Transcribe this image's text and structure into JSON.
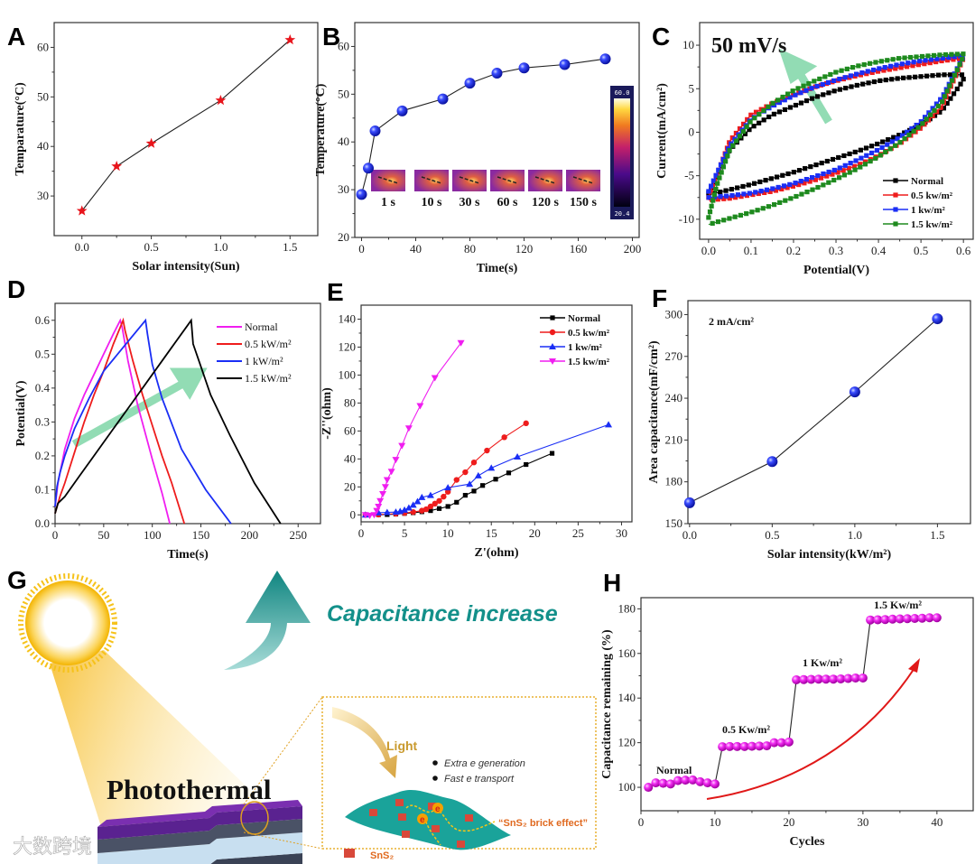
{
  "chart_data": [
    {
      "id": "A",
      "type": "line",
      "letter": "A",
      "title": "",
      "xlabel": "Solar intensity(Sun)",
      "ylabel": "Temparature(°C)",
      "xlim": [
        -0.2,
        1.7
      ],
      "ylim": [
        22,
        65
      ],
      "xticks": [
        0,
        0.5,
        1,
        1.5
      ],
      "xtick_labels": [
        "0.0",
        "0.5",
        "1.0",
        "1.5"
      ],
      "yticks": [
        30,
        40,
        50,
        60
      ],
      "ytick_labels": [
        "30",
        "40",
        "50",
        "60"
      ],
      "series": [
        {
          "name": "Temperature",
          "color": "#e8141b",
          "marker": "star",
          "line": "#222",
          "x": [
            0,
            0.25,
            0.5,
            1.0,
            1.5
          ],
          "y": [
            27,
            36,
            40.6,
            49.3,
            61.5
          ]
        }
      ],
      "annotations": []
    },
    {
      "id": "B",
      "type": "line",
      "letter": "B",
      "xlabel": "Time(s)",
      "ylabel": "Temperature(°C)",
      "xlim": [
        -5,
        205
      ],
      "ylim": [
        20,
        65
      ],
      "xticks": [
        0,
        40,
        80,
        120,
        160,
        200
      ],
      "xtick_labels": [
        "0",
        "40",
        "80",
        "120",
        "160",
        "200"
      ],
      "yticks": [
        20,
        30,
        40,
        50,
        60
      ],
      "ytick_labels": [
        "20",
        "30",
        "40",
        "50",
        "60"
      ],
      "series": [
        {
          "name": "Temperature",
          "color": "#1c2cf0",
          "marker": "sphere",
          "line": "#222",
          "x": [
            0,
            5,
            10,
            30,
            60,
            80,
            100,
            120,
            150,
            180
          ],
          "y": [
            29,
            34.5,
            42.3,
            46.5,
            49,
            52.3,
            54.4,
            55.5,
            56.2,
            57.4
          ]
        }
      ],
      "inset": {
        "frame_labels": [
          "1 s",
          "10 s",
          "30 s",
          "60 s",
          "120 s",
          "150 s"
        ],
        "colorbar_max": "60.0",
        "colorbar_min": "20.4"
      },
      "annotations": []
    },
    {
      "id": "C",
      "type": "line",
      "letter": "C",
      "xlabel": "Potential(V)",
      "ylabel": "Current(mA/cm²)",
      "xlim": [
        -0.021,
        0.623
      ],
      "ylim": [
        -12.3,
        12.6
      ],
      "xticks": [
        0,
        0.1,
        0.2,
        0.3,
        0.4,
        0.5,
        0.6
      ],
      "xtick_labels": [
        "0.0",
        "0.1",
        "0.2",
        "0.3",
        "0.4",
        "0.5",
        "0.6"
      ],
      "yticks": [
        -10,
        -5,
        0,
        5,
        10
      ],
      "ytick_labels": [
        "-10",
        "-5",
        "0",
        "5",
        "10"
      ],
      "series": [
        {
          "name": "Normal",
          "color": "#000000",
          "marker": "square",
          "dense": true,
          "x": [
            0,
            0.05,
            0.1,
            0.15,
            0.2,
            0.25,
            0.3,
            0.35,
            0.4,
            0.45,
            0.5,
            0.55,
            0.6,
            0.6,
            0.55,
            0.5,
            0.45,
            0.4,
            0.35,
            0.3,
            0.25,
            0.2,
            0.15,
            0.1,
            0.05,
            0
          ],
          "y": [
            -7,
            -2,
            0.5,
            2,
            3,
            4,
            4.8,
            5.4,
            5.9,
            6.2,
            6.4,
            6.6,
            6.6,
            6,
            2.5,
            0.8,
            -0.3,
            -1.3,
            -2.2,
            -3,
            -3.8,
            -4.6,
            -5.3,
            -6,
            -6.6,
            -7.2
          ]
        },
        {
          "name": "0.5 kw/m²",
          "color": "#ee1c1c",
          "marker": "square",
          "dense": true,
          "x": [
            0,
            0.05,
            0.1,
            0.15,
            0.2,
            0.25,
            0.3,
            0.35,
            0.4,
            0.45,
            0.5,
            0.55,
            0.6,
            0.6,
            0.55,
            0.5,
            0.45,
            0.4,
            0.35,
            0.3,
            0.25,
            0.2,
            0.15,
            0.1,
            0.05,
            0
          ],
          "y": [
            -7.5,
            -1,
            2,
            3.3,
            4.3,
            5.2,
            5.9,
            6.5,
            7,
            7.4,
            7.8,
            8.2,
            8.5,
            8.5,
            3,
            0.5,
            -1.3,
            -2.7,
            -3.8,
            -4.7,
            -5.5,
            -6.2,
            -6.8,
            -7.2,
            -7.6,
            -7.8
          ]
        },
        {
          "name": "1 kw/m²",
          "color": "#1a2ef5",
          "marker": "square",
          "dense": true,
          "x": [
            0,
            0.05,
            0.1,
            0.15,
            0.2,
            0.25,
            0.3,
            0.35,
            0.4,
            0.45,
            0.5,
            0.55,
            0.6,
            0.6,
            0.55,
            0.5,
            0.45,
            0.4,
            0.35,
            0.3,
            0.25,
            0.2,
            0.15,
            0.1,
            0.05,
            0
          ],
          "y": [
            -6.8,
            -1.5,
            1.5,
            3,
            4.2,
            5.2,
            6,
            6.7,
            7.3,
            7.8,
            8.2,
            8.5,
            8.8,
            8.7,
            4,
            1.2,
            -0.6,
            -2,
            -3.2,
            -4.3,
            -5.1,
            -5.9,
            -6.5,
            -7,
            -7.3,
            -7.5
          ]
        },
        {
          "name": "1.5 kw/m²",
          "color": "#1e8a1e",
          "marker": "square",
          "dense": true,
          "x": [
            0,
            0.02,
            0.05,
            0.1,
            0.15,
            0.2,
            0.25,
            0.3,
            0.35,
            0.4,
            0.45,
            0.5,
            0.55,
            0.6,
            0.6,
            0.55,
            0.5,
            0.45,
            0.4,
            0.35,
            0.3,
            0.25,
            0.2,
            0.15,
            0.1,
            0.05,
            0
          ],
          "y": [
            -9.8,
            -6,
            -2,
            1.3,
            3.3,
            4.8,
            5.9,
            6.9,
            7.6,
            8.1,
            8.5,
            8.7,
            8.9,
            9,
            8.7,
            3.5,
            0.8,
            -1.2,
            -2.8,
            -4.2,
            -5.4,
            -6.5,
            -7.5,
            -8.4,
            -9.2,
            -9.9,
            -10.6
          ]
        }
      ],
      "legend": "bottom-right",
      "annotations": [
        "50 mV/s"
      ]
    },
    {
      "id": "D",
      "type": "line",
      "letter": "D",
      "xlabel": "Time(s)",
      "ylabel": "Potential(V)",
      "xlim": [
        0,
        273
      ],
      "ylim": [
        0,
        0.65
      ],
      "xticks": [
        0,
        50,
        100,
        150,
        200,
        250
      ],
      "xtick_labels": [
        "0",
        "50",
        "100",
        "150",
        "200",
        "250"
      ],
      "yticks": [
        0,
        0.1,
        0.2,
        0.3,
        0.4,
        0.5,
        0.6
      ],
      "ytick_labels": [
        "0.0",
        "0.1",
        "0.2",
        "0.3",
        "0.4",
        "0.5",
        "0.6"
      ],
      "series": [
        {
          "name": "Normal",
          "color": "#f01ef0",
          "marker": "none",
          "x": [
            0,
            3,
            10,
            20,
            30,
            40,
            50,
            60,
            67,
            69,
            75,
            85,
            100,
            110,
            118
          ],
          "y": [
            0.05,
            0.12,
            0.22,
            0.31,
            0.38,
            0.44,
            0.5,
            0.56,
            0.6,
            0.58,
            0.48,
            0.35,
            0.19,
            0.09,
            0
          ]
        },
        {
          "name": "0.5 kW/m²",
          "color": "#ee1c1c",
          "marker": "none",
          "x": [
            0,
            5,
            10,
            20,
            30,
            40,
            50,
            60,
            70,
            72,
            80,
            90,
            100,
            110,
            120,
            133
          ],
          "y": [
            0.03,
            0.08,
            0.12,
            0.21,
            0.3,
            0.38,
            0.45,
            0.53,
            0.6,
            0.57,
            0.48,
            0.38,
            0.29,
            0.2,
            0.12,
            0
          ]
        },
        {
          "name": "1 kW/m²",
          "color": "#1a2ef5",
          "marker": "none",
          "x": [
            0,
            2,
            5,
            10,
            20,
            35,
            50,
            70,
            93,
            95,
            100,
            110,
            130,
            155,
            181
          ],
          "y": [
            0.05,
            0.11,
            0.15,
            0.2,
            0.28,
            0.37,
            0.45,
            0.52,
            0.6,
            0.56,
            0.47,
            0.37,
            0.22,
            0.1,
            0
          ]
        },
        {
          "name": "1.5 kW/m²",
          "color": "#000000",
          "marker": "none",
          "x": [
            0,
            3,
            10,
            25,
            40,
            60,
            80,
            100,
            120,
            140,
            142,
            148,
            160,
            180,
            205,
            232
          ],
          "y": [
            0.03,
            0.06,
            0.08,
            0.14,
            0.2,
            0.28,
            0.36,
            0.44,
            0.52,
            0.6,
            0.53,
            0.48,
            0.38,
            0.26,
            0.12,
            0
          ]
        }
      ],
      "legend": "top-right",
      "annotations": []
    },
    {
      "id": "E",
      "type": "scatter",
      "letter": "E",
      "xlabel": "Z'(ohm)",
      "ylabel": "-Z''(ohm)",
      "xlim": [
        0,
        31.2
      ],
      "ylim": [
        -5,
        150
      ],
      "xticks": [
        0,
        5,
        10,
        15,
        20,
        25,
        30
      ],
      "xtick_labels": [
        "0",
        "5",
        "10",
        "15",
        "20",
        "25",
        "30"
      ],
      "yticks": [
        0,
        20,
        40,
        60,
        80,
        100,
        120,
        140
      ],
      "ytick_labels": [
        "0",
        "20",
        "40",
        "60",
        "80",
        "100",
        "120",
        "140"
      ],
      "series": [
        {
          "name": "Normal",
          "color": "#000000",
          "marker": "square",
          "x": [
            0.5,
            2,
            3,
            4,
            5,
            6,
            7,
            8,
            9,
            10,
            11,
            12,
            13,
            14,
            15.5,
            17,
            19,
            22
          ],
          "y": [
            0,
            0.1,
            0.2,
            0.5,
            1,
            1.5,
            2.2,
            3,
            4.5,
            6,
            9,
            14,
            17,
            21,
            25.5,
            30,
            36,
            44
          ]
        },
        {
          "name": "0.5 kw/m²",
          "color": "#ee1c1c",
          "marker": "circle",
          "x": [
            0.5,
            2,
            4,
            5,
            6,
            7,
            7.5,
            8,
            8.5,
            9,
            9.5,
            10,
            11,
            12,
            13,
            14.5,
            16.5,
            19
          ],
          "y": [
            0,
            0.2,
            0.8,
            1.3,
            2,
            3,
            4,
            6,
            8,
            10,
            13,
            16.5,
            25,
            30.5,
            37.5,
            46,
            55.5,
            65.5
          ]
        },
        {
          "name": "1 kw/m²",
          "color": "#1a2ef5",
          "marker": "tri-up",
          "x": [
            0.5,
            2,
            3,
            4,
            4.5,
            5,
            5.5,
            6,
            6.5,
            7,
            8,
            10,
            12.5,
            13.5,
            15,
            18,
            28.5
          ],
          "y": [
            0,
            1.5,
            1.8,
            2,
            2.5,
            3.5,
            5,
            7,
            9.5,
            12.5,
            14,
            19.5,
            22,
            28,
            33.5,
            41.5,
            64.5
          ]
        },
        {
          "name": "1.5 kw/m²",
          "color": "#f01ef0",
          "marker": "tri-down",
          "x": [
            0.5,
            1,
            1.5,
            1.8,
            2,
            2.2,
            2.5,
            2.8,
            3,
            3.5,
            4,
            4.7,
            5.5,
            6.8,
            8.5,
            11.5
          ],
          "y": [
            0,
            -0.5,
            0,
            3,
            6,
            10,
            15,
            20,
            25,
            31,
            39.5,
            49.5,
            62,
            78,
            98,
            123
          ]
        }
      ],
      "legend": "top-right",
      "annotations": []
    },
    {
      "id": "F",
      "type": "line",
      "letter": "F",
      "xlabel": "Solar intensity(kW/m²)",
      "ylabel": "Area capacitance(mF/cm²)",
      "xlim": [
        -0.01,
        1.7
      ],
      "ylim": [
        150,
        310
      ],
      "xticks": [
        0,
        0.5,
        1,
        1.5
      ],
      "xtick_labels": [
        "0.0",
        "0.5",
        "1.0",
        "1.5"
      ],
      "yticks": [
        150,
        180,
        210,
        240,
        270,
        300
      ],
      "ytick_labels": [
        "150",
        "180",
        "210",
        "240",
        "270",
        "300"
      ],
      "series": [
        {
          "name": "Area capacitance",
          "color": "#1c2cf0",
          "marker": "sphere",
          "line": "#222",
          "x": [
            0,
            0.5,
            1.0,
            1.5
          ],
          "y": [
            165,
            194.5,
            244.5,
            297
          ]
        }
      ],
      "annotations": [
        "2 mA/cm²"
      ]
    },
    {
      "id": "H",
      "type": "line",
      "letter": "H",
      "xlabel": "Cycles",
      "ylabel": "Capacitance remaining (%)",
      "xlim": [
        0,
        44.9
      ],
      "ylim": [
        89.5,
        185
      ],
      "xticks": [
        0,
        10,
        20,
        30,
        40
      ],
      "xtick_labels": [
        "0",
        "10",
        "20",
        "30",
        "40"
      ],
      "yticks": [
        100,
        120,
        140,
        160,
        180
      ],
      "ytick_labels": [
        "100",
        "120",
        "140",
        "160",
        "180"
      ],
      "series": [
        {
          "name": "Capacitance remaining",
          "color": "#f01ef0",
          "marker": "sphere-m",
          "line": "#222",
          "x": [
            1,
            2,
            3,
            4,
            5,
            6,
            7,
            8,
            9,
            10,
            11,
            12,
            13,
            14,
            15,
            16,
            17,
            18,
            19,
            20,
            21,
            22,
            23,
            24,
            25,
            26,
            27,
            28,
            29,
            30,
            31,
            32,
            33,
            34,
            35,
            36,
            37,
            38,
            39,
            40
          ],
          "y": [
            100,
            102,
            101.8,
            101.5,
            103,
            103.2,
            103.3,
            102.5,
            102,
            101.5,
            118.2,
            118.3,
            118.3,
            118.3,
            118.4,
            118.5,
            118.6,
            120,
            120,
            120.3,
            148.2,
            148.3,
            148.4,
            148.5,
            148.5,
            148.5,
            148.6,
            148.8,
            149,
            149,
            175,
            175.1,
            175.2,
            175.4,
            175.5,
            175.6,
            175.7,
            175.8,
            176,
            176
          ]
        }
      ],
      "annotations": [
        "Normal",
        "0.5 Kw/m²",
        "1 Kw/m²",
        "1.5 Kw/m²"
      ]
    }
  ],
  "illustration": {
    "letter": "G",
    "title": "Capacitance increase",
    "photothermal": "Photothermal",
    "light": "Light",
    "bullets": [
      "Extra e generation",
      "Fast  e transport"
    ],
    "electron": "e",
    "brick_effect": "“SnS₂ brick effect”",
    "legend_sns2": "SnS₂",
    "watermark": "大数跨境",
    "colors": {
      "teal": "#13908a",
      "sun": "#f5c518",
      "sheet": "#1aa39a",
      "purple": "#7a2fb0"
    }
  }
}
